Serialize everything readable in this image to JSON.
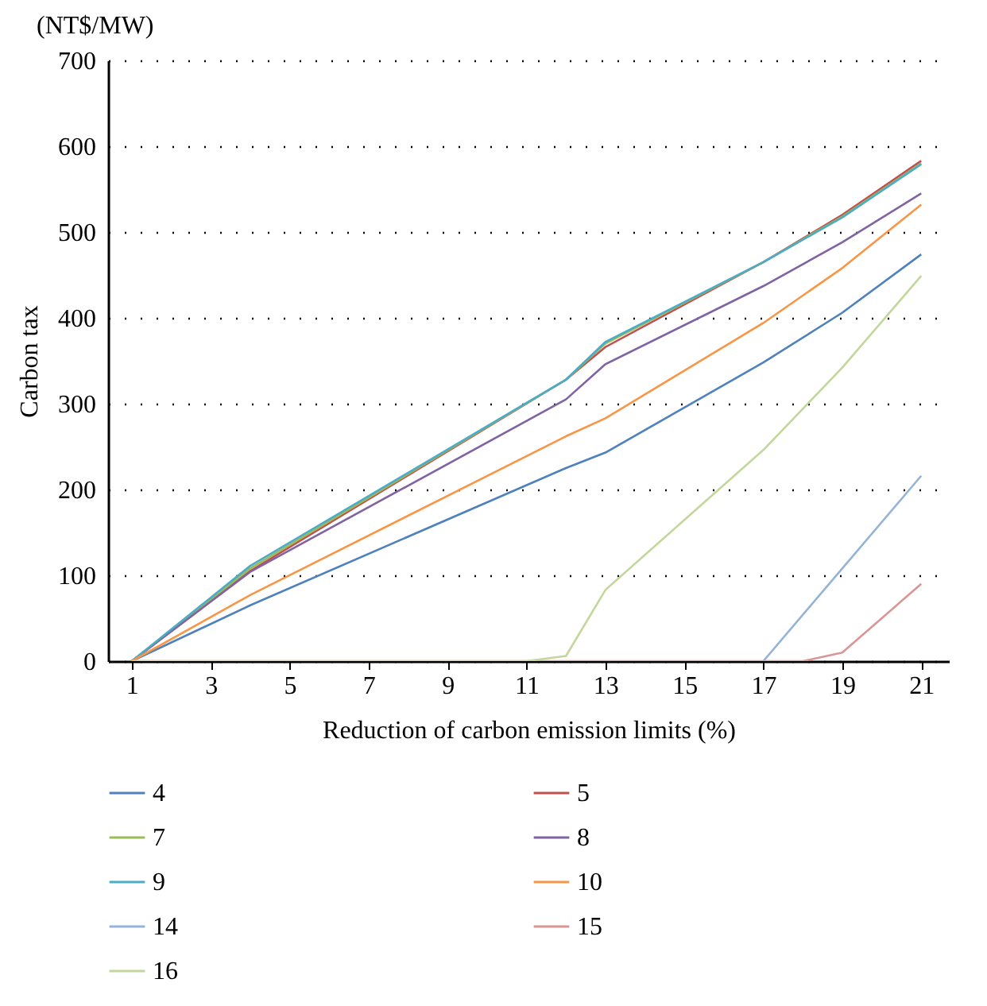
{
  "chart_data": {
    "type": "line",
    "xlabel": "Reduction of carbon emission limits (%)",
    "ylabel": "Carbon tax",
    "annotations": [
      "(NT$/MW)"
    ],
    "xlim": [
      0.4,
      21.7
    ],
    "xticks": [
      1,
      3,
      5,
      7,
      9,
      11,
      13,
      15,
      17,
      19,
      21
    ],
    "ylim": [
      0,
      700
    ],
    "yticks": [
      0,
      100,
      200,
      300,
      400,
      500,
      600,
      700
    ],
    "grid": "y",
    "legend": "bottom",
    "marker": "none",
    "line_style": "solid",
    "series": [
      {
        "name": "4",
        "color": "#4f81bd",
        "x": [
          1,
          4,
          12,
          13,
          17,
          19,
          21
        ],
        "values": [
          0,
          65,
          225,
          243,
          348,
          406,
          474
        ]
      },
      {
        "name": "5",
        "color": "#c0504d",
        "x": [
          1,
          4,
          12,
          13,
          17,
          19,
          21
        ],
        "values": [
          0,
          105,
          328,
          366,
          465,
          520,
          583
        ]
      },
      {
        "name": "7",
        "color": "#9bbb59",
        "x": [
          1,
          4,
          12,
          13,
          17,
          19,
          21
        ],
        "values": [
          0,
          108,
          328,
          370,
          465,
          518,
          580
        ]
      },
      {
        "name": "8",
        "color": "#8064a2",
        "x": [
          1,
          4,
          12,
          13,
          17,
          19,
          21
        ],
        "values": [
          0,
          104,
          305,
          346,
          437,
          488,
          545
        ]
      },
      {
        "name": "9",
        "color": "#4bacc6",
        "x": [
          1,
          4,
          12,
          13,
          17,
          19,
          21
        ],
        "values": [
          0,
          111,
          328,
          372,
          465,
          517,
          579
        ]
      },
      {
        "name": "10",
        "color": "#f79646",
        "x": [
          1,
          4,
          12,
          13,
          17,
          19,
          21
        ],
        "values": [
          0,
          77,
          262,
          283,
          394,
          458,
          532
        ]
      },
      {
        "name": "14",
        "color": "#95b3d7",
        "x": [
          17,
          19,
          21
        ],
        "values": [
          0,
          108,
          216
        ]
      },
      {
        "name": "15",
        "color": "#d99694",
        "x": [
          1,
          18,
          19,
          21
        ],
        "values": [
          0,
          0,
          10,
          90
        ]
      },
      {
        "name": "16",
        "color": "#c3d69b",
        "x": [
          1,
          11,
          12,
          13,
          17,
          19,
          21
        ],
        "values": [
          0,
          0,
          6,
          83,
          246,
          342,
          449
        ]
      }
    ]
  }
}
